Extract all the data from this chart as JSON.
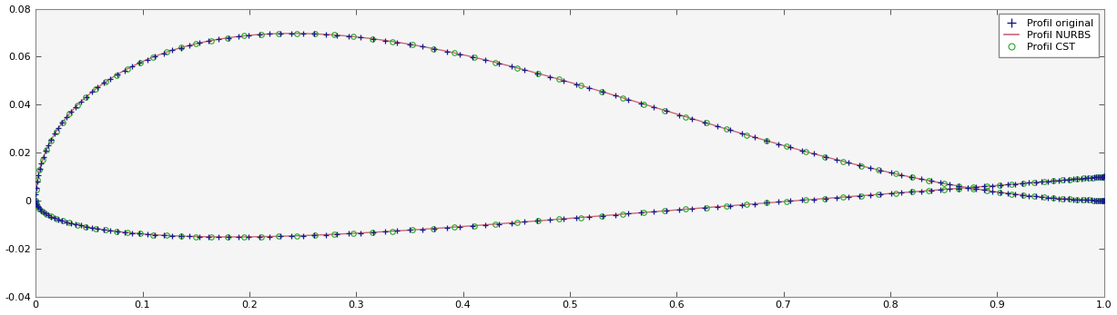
{
  "xlim": [
    0,
    1
  ],
  "ylim": [
    -0.04,
    0.08
  ],
  "xticks": [
    0,
    0.1,
    0.2,
    0.3,
    0.4,
    0.5,
    0.6,
    0.7,
    0.8,
    0.9,
    1
  ],
  "yticks": [
    -0.04,
    -0.02,
    0,
    0.02,
    0.04,
    0.06,
    0.08
  ],
  "legend_labels": [
    "Profil original",
    "Profil NURBS",
    "Profil CST"
  ],
  "original_color": "#1a1a8a",
  "nurbs_color": "#cc6677",
  "cst_color": "#22aa22",
  "background_color": "#f5f5f5",
  "figure_bg": "#ffffff",
  "figsize": [
    12.27,
    3.47
  ],
  "dpi": 100,
  "n_upper": 130,
  "n_lower": 130,
  "n_cst": 80
}
